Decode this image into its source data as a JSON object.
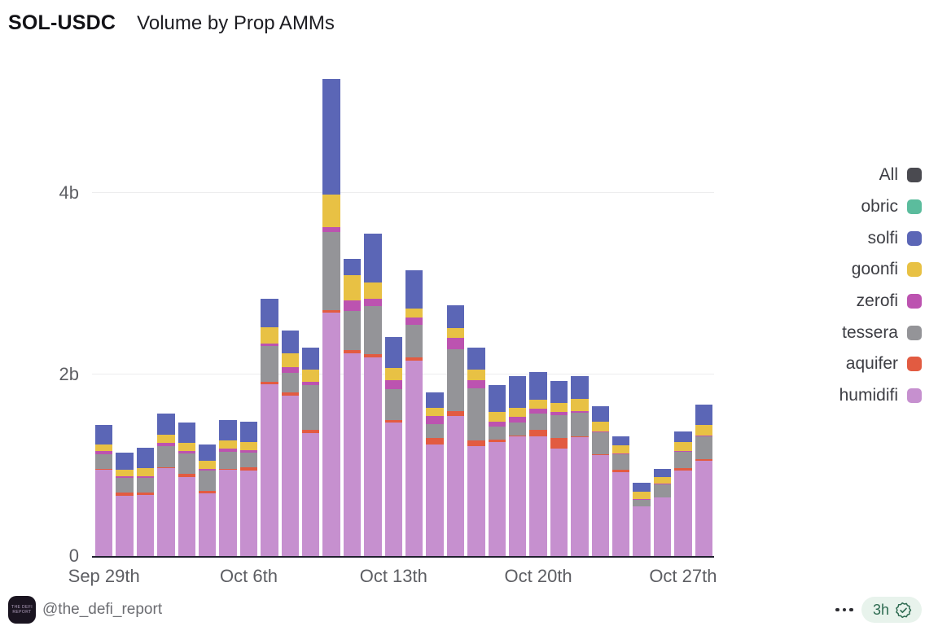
{
  "header": {
    "title": "SOL-USDC",
    "subtitle": "Volume by Prop AMMs"
  },
  "legend": {
    "position": "right",
    "items": [
      {
        "label": "All",
        "color": "#4a4a50"
      },
      {
        "label": "obric",
        "color": "#5bbc9d"
      },
      {
        "label": "solfi",
        "color": "#5b66b6"
      },
      {
        "label": "goonfi",
        "color": "#e8c144"
      },
      {
        "label": "zerofi",
        "color": "#bc53b0"
      },
      {
        "label": "tessera",
        "color": "#949498"
      },
      {
        "label": "aquifer",
        "color": "#e25b41"
      },
      {
        "label": "humidifi",
        "color": "#c690cf"
      }
    ]
  },
  "chart_data": {
    "type": "bar",
    "stacked": true,
    "title": "SOL-USDC Volume by Prop AMMs",
    "unit": "billions",
    "xlabel": "",
    "ylabel": "",
    "ylim": [
      0,
      5.33
    ],
    "grid": "horizontal",
    "yticks": [
      {
        "label": "0",
        "value": 0
      },
      {
        "label": "2b",
        "value": 2
      },
      {
        "label": "4b",
        "value": 4
      }
    ],
    "categories": [
      "Sep 29",
      "Sep 30",
      "Oct 1",
      "Oct 2",
      "Oct 3",
      "Oct 4",
      "Oct 5",
      "Oct 6",
      "Oct 7",
      "Oct 8",
      "Oct 9",
      "Oct 10",
      "Oct 11",
      "Oct 12",
      "Oct 13",
      "Oct 14",
      "Oct 15",
      "Oct 16",
      "Oct 17",
      "Oct 18",
      "Oct 19",
      "Oct 20",
      "Oct 21",
      "Oct 22",
      "Oct 23",
      "Oct 24",
      "Oct 25",
      "Oct 26",
      "Oct 27",
      "Oct 28"
    ],
    "x_week_labels": [
      {
        "label": "Sep 29th",
        "index": 0
      },
      {
        "label": "Oct 6th",
        "index": 7
      },
      {
        "label": "Oct 13th",
        "index": 14
      },
      {
        "label": "Oct 20th",
        "index": 21
      },
      {
        "label": "Oct 27th",
        "index": 28
      }
    ],
    "series": [
      {
        "name": "humidifi",
        "color": "#c690cf",
        "values": [
          0.95,
          0.66,
          0.67,
          0.97,
          0.87,
          0.69,
          0.95,
          0.94,
          1.89,
          1.77,
          1.35,
          2.68,
          2.23,
          2.19,
          1.47,
          2.15,
          1.23,
          1.54,
          1.21,
          1.26,
          1.32,
          1.32,
          1.18,
          1.31,
          1.11,
          0.92,
          0.55,
          0.65,
          0.94,
          1.05
        ]
      },
      {
        "name": "aquifer",
        "color": "#e25b41",
        "values": [
          0.01,
          0.04,
          0.03,
          0.01,
          0.04,
          0.03,
          0.01,
          0.04,
          0.03,
          0.03,
          0.04,
          0.03,
          0.04,
          0.03,
          0.03,
          0.04,
          0.07,
          0.06,
          0.06,
          0.02,
          0.01,
          0.07,
          0.12,
          0.01,
          0.01,
          0.03,
          0.0,
          0.0,
          0.03,
          0.02
        ]
      },
      {
        "name": "tessera",
        "color": "#949498",
        "values": [
          0.16,
          0.16,
          0.16,
          0.23,
          0.22,
          0.22,
          0.19,
          0.16,
          0.39,
          0.22,
          0.49,
          0.86,
          0.43,
          0.53,
          0.34,
          0.36,
          0.15,
          0.68,
          0.58,
          0.15,
          0.14,
          0.18,
          0.25,
          0.26,
          0.24,
          0.17,
          0.07,
          0.14,
          0.18,
          0.25
        ]
      },
      {
        "name": "zerofi",
        "color": "#bc53b0",
        "values": [
          0.04,
          0.02,
          0.02,
          0.04,
          0.03,
          0.02,
          0.03,
          0.03,
          0.03,
          0.06,
          0.04,
          0.05,
          0.12,
          0.08,
          0.1,
          0.08,
          0.09,
          0.12,
          0.09,
          0.05,
          0.06,
          0.05,
          0.04,
          0.02,
          0.01,
          0.01,
          0.01,
          0.01,
          0.01,
          0.01
        ]
      },
      {
        "name": "goonfi",
        "color": "#e8c144",
        "values": [
          0.07,
          0.07,
          0.09,
          0.09,
          0.09,
          0.09,
          0.09,
          0.09,
          0.18,
          0.15,
          0.13,
          0.36,
          0.27,
          0.18,
          0.13,
          0.1,
          0.09,
          0.11,
          0.11,
          0.11,
          0.1,
          0.1,
          0.1,
          0.13,
          0.11,
          0.09,
          0.08,
          0.07,
          0.1,
          0.11
        ]
      },
      {
        "name": "solfi",
        "color": "#5b66b6",
        "values": [
          0.21,
          0.19,
          0.22,
          0.23,
          0.22,
          0.18,
          0.23,
          0.22,
          0.31,
          0.25,
          0.25,
          1.28,
          0.18,
          0.54,
          0.34,
          0.42,
          0.17,
          0.25,
          0.25,
          0.29,
          0.35,
          0.31,
          0.24,
          0.25,
          0.17,
          0.1,
          0.1,
          0.09,
          0.11,
          0.23
        ]
      },
      {
        "name": "obric",
        "color": "#5bbc9d",
        "values": [
          0,
          0,
          0,
          0,
          0,
          0,
          0,
          0,
          0,
          0,
          0,
          0,
          0,
          0,
          0,
          0,
          0,
          0,
          0,
          0,
          0,
          0,
          0,
          0,
          0,
          0,
          0,
          0,
          0,
          0
        ]
      }
    ]
  },
  "footer": {
    "handle": "@the_defi_report",
    "avatar_line1": "THE DEFI",
    "avatar_line2": "REPORT",
    "more_menu_icon": "ellipsis-icon",
    "timestamp": "3h",
    "verified_icon": "seal-check-icon",
    "badge_bg": "#e8f3ec",
    "badge_fg": "#2e6b51"
  }
}
